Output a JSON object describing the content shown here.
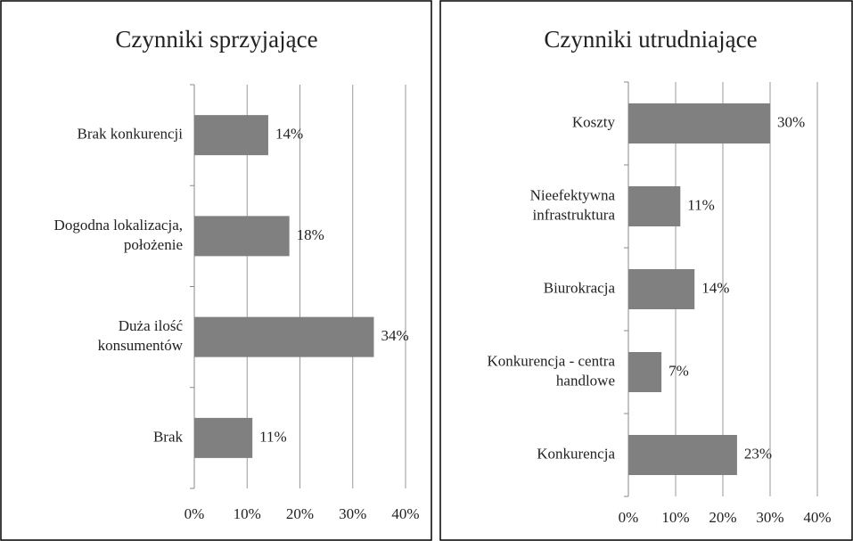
{
  "chart_data": [
    {
      "type": "barh",
      "title": "Czynniki sprzyjające",
      "categories": [
        "Brak konkurencji",
        "Dogodna lokalizacja,\npołożenie",
        "Duża ilość\nkonsumentów",
        "Brak"
      ],
      "values": [
        14,
        18,
        34,
        11
      ],
      "value_labels": [
        "14%",
        "18%",
        "34%",
        "11%"
      ],
      "color": "#808080",
      "xlim": [
        0,
        40
      ],
      "xticks": [
        {
          "value": 0,
          "label": "0%"
        },
        {
          "value": 10,
          "label": "10%"
        },
        {
          "value": 20,
          "label": "20%"
        },
        {
          "value": 30,
          "label": "30%"
        },
        {
          "value": 40,
          "label": "40%"
        }
      ],
      "grid": true
    },
    {
      "type": "barh",
      "title": "Czynniki utrudniające",
      "categories": [
        "Koszty",
        "Nieefektywna\ninfrastruktura",
        "Biurokracja",
        "Konkurencja - centra\nhandlowe",
        "Konkurencja"
      ],
      "values": [
        30,
        11,
        14,
        7,
        23
      ],
      "value_labels": [
        "30%",
        "11%",
        "14%",
        "7%",
        "23%"
      ],
      "color": "#808080",
      "xlim": [
        0,
        40
      ],
      "xticks": [
        {
          "value": 0,
          "label": "0%"
        },
        {
          "value": 10,
          "label": "10%"
        },
        {
          "value": 20,
          "label": "20%"
        },
        {
          "value": 30,
          "label": "30%"
        },
        {
          "value": 40,
          "label": "40%"
        }
      ],
      "grid": true
    }
  ]
}
